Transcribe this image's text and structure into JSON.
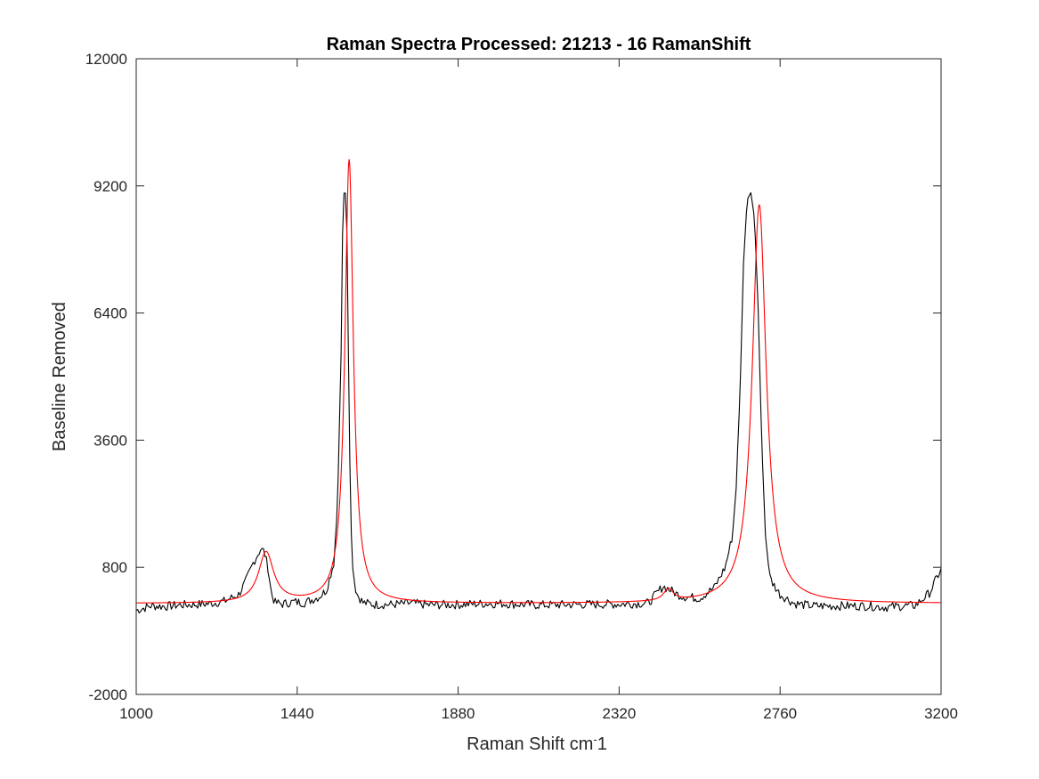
{
  "chart_data": {
    "type": "line",
    "title": "Raman Spectra Processed: 21213 - 16 RamanShift",
    "xlabel": "Raman Shift cm",
    "xlabel_sup": "-",
    "xlabel_suffix": "1",
    "ylabel": "Baseline Removed",
    "xlim": [
      1000,
      3200
    ],
    "ylim": [
      -2000,
      12000
    ],
    "xticks": [
      1000,
      1440,
      1880,
      2320,
      2760,
      3200
    ],
    "yticks": [
      -2000,
      800,
      3600,
      6400,
      9200,
      12000
    ],
    "grid": false,
    "box": true,
    "series": [
      {
        "role": "measured",
        "color": "#000000",
        "x": [
          1000,
          1040,
          1080,
          1120,
          1160,
          1200,
          1240,
          1280,
          1300,
          1320,
          1340,
          1350,
          1360,
          1370,
          1380,
          1400,
          1430,
          1460,
          1500,
          1520,
          1540,
          1550,
          1560,
          1565,
          1570,
          1575,
          1580,
          1585,
          1590,
          1600,
          1620,
          1650,
          1700,
          1750,
          1800,
          1880,
          1950,
          2000,
          2100,
          2200,
          2320,
          2400,
          2420,
          2440,
          2460,
          2480,
          2500,
          2540,
          2580,
          2610,
          2630,
          2640,
          2650,
          2660,
          2670,
          2680,
          2690,
          2700,
          2710,
          2720,
          2730,
          2740,
          2760,
          2800,
          2850,
          2900,
          3000,
          3050,
          3100,
          3130,
          3150,
          3170,
          3190,
          3200
        ],
        "y": [
          -150,
          -50,
          -60,
          -30,
          -20,
          0,
          50,
          200,
          500,
          900,
          1200,
          1150,
          800,
          200,
          20,
          -10,
          40,
          20,
          150,
          300,
          900,
          2100,
          5500,
          8800,
          9200,
          8800,
          5500,
          2500,
          900,
          250,
          20,
          -20,
          -20,
          10,
          -30,
          -20,
          0,
          0,
          -30,
          -20,
          -10,
          10,
          200,
          380,
          300,
          200,
          150,
          120,
          350,
          800,
          1500,
          2600,
          4500,
          7500,
          8900,
          9050,
          8500,
          6500,
          3500,
          1500,
          700,
          450,
          200,
          0,
          -50,
          -50,
          -50,
          -80,
          -50,
          -40,
          100,
          250,
          600,
          750
        ]
      },
      {
        "role": "fit",
        "color": "#ff0000",
        "peaks": [
          {
            "center": 1355,
            "amplitude": 1110,
            "hwhm": 25
          },
          {
            "center": 1582,
            "amplitude": 9760,
            "hwhm": 14
          },
          {
            "center": 2455,
            "amplitude": 260,
            "hwhm": 16
          },
          {
            "center": 2703,
            "amplitude": 8780,
            "hwhm": 23
          }
        ],
        "baseline": 2
      }
    ]
  }
}
